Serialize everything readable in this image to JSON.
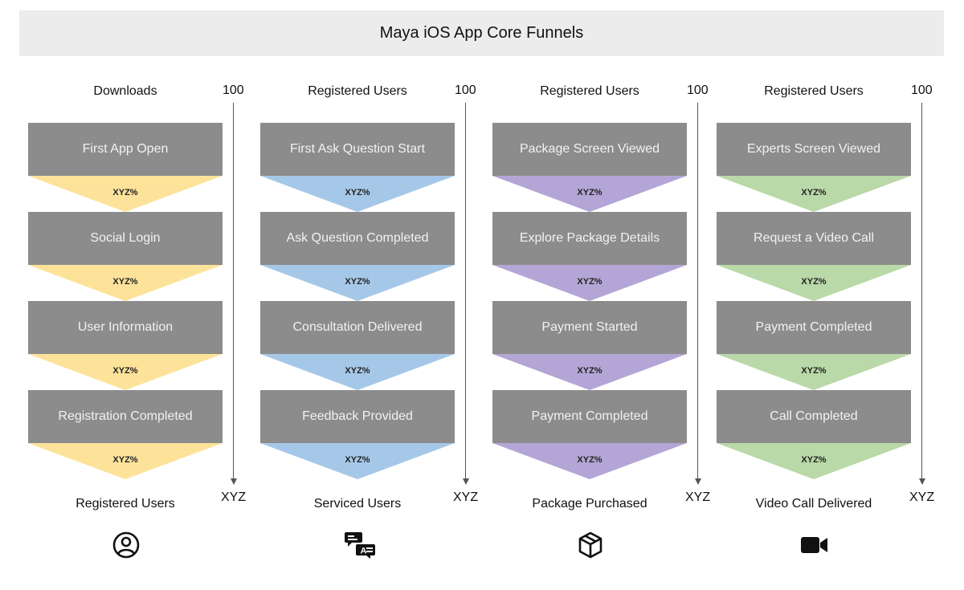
{
  "title": "Maya iOS App Core Funnels",
  "funnels": [
    {
      "top_label": "Downloads",
      "start_value": "100",
      "end_value": "XYZ",
      "bottom_label": "Registered Users",
      "color": "#fde39a",
      "icon": "user-circle-icon",
      "steps": [
        {
          "label": "First App Open",
          "percent": "XYZ%"
        },
        {
          "label": "Social Login",
          "percent": "XYZ%"
        },
        {
          "label": "User Information",
          "percent": "XYZ%"
        },
        {
          "label": "Registration Completed",
          "percent": "XYZ%"
        }
      ]
    },
    {
      "top_label": "Registered Users",
      "start_value": "100",
      "end_value": "XYZ",
      "bottom_label": "Serviced Users",
      "color": "#a6c8e8",
      "icon": "question-answer-icon",
      "steps": [
        {
          "label": "First Ask Question Start",
          "percent": "XYZ%"
        },
        {
          "label": "Ask Question Completed",
          "percent": "XYZ%"
        },
        {
          "label": "Consultation Delivered",
          "percent": "XYZ%"
        },
        {
          "label": "Feedback Provided",
          "percent": "XYZ%"
        }
      ]
    },
    {
      "top_label": "Registered Users",
      "start_value": "100",
      "end_value": "XYZ",
      "bottom_label": "Package Purchased",
      "color": "#b3a6d6",
      "icon": "package-box-icon",
      "steps": [
        {
          "label": "Package Screen Viewed",
          "percent": "XYZ%"
        },
        {
          "label": "Explore Package Details",
          "percent": "XYZ%"
        },
        {
          "label": "Payment Started",
          "percent": "XYZ%"
        },
        {
          "label": "Payment Completed",
          "percent": "XYZ%"
        }
      ]
    },
    {
      "top_label": "Registered Users",
      "start_value": "100",
      "end_value": "XYZ",
      "bottom_label": "Video Call Delivered",
      "color": "#b9d9a8",
      "icon": "video-camera-icon",
      "steps": [
        {
          "label": "Experts Screen Viewed",
          "percent": "XYZ%"
        },
        {
          "label": "Request a Video Call",
          "percent": "XYZ%"
        },
        {
          "label": "Payment Completed",
          "percent": "XYZ%"
        },
        {
          "label": "Call Completed",
          "percent": "XYZ%"
        }
      ]
    }
  ]
}
